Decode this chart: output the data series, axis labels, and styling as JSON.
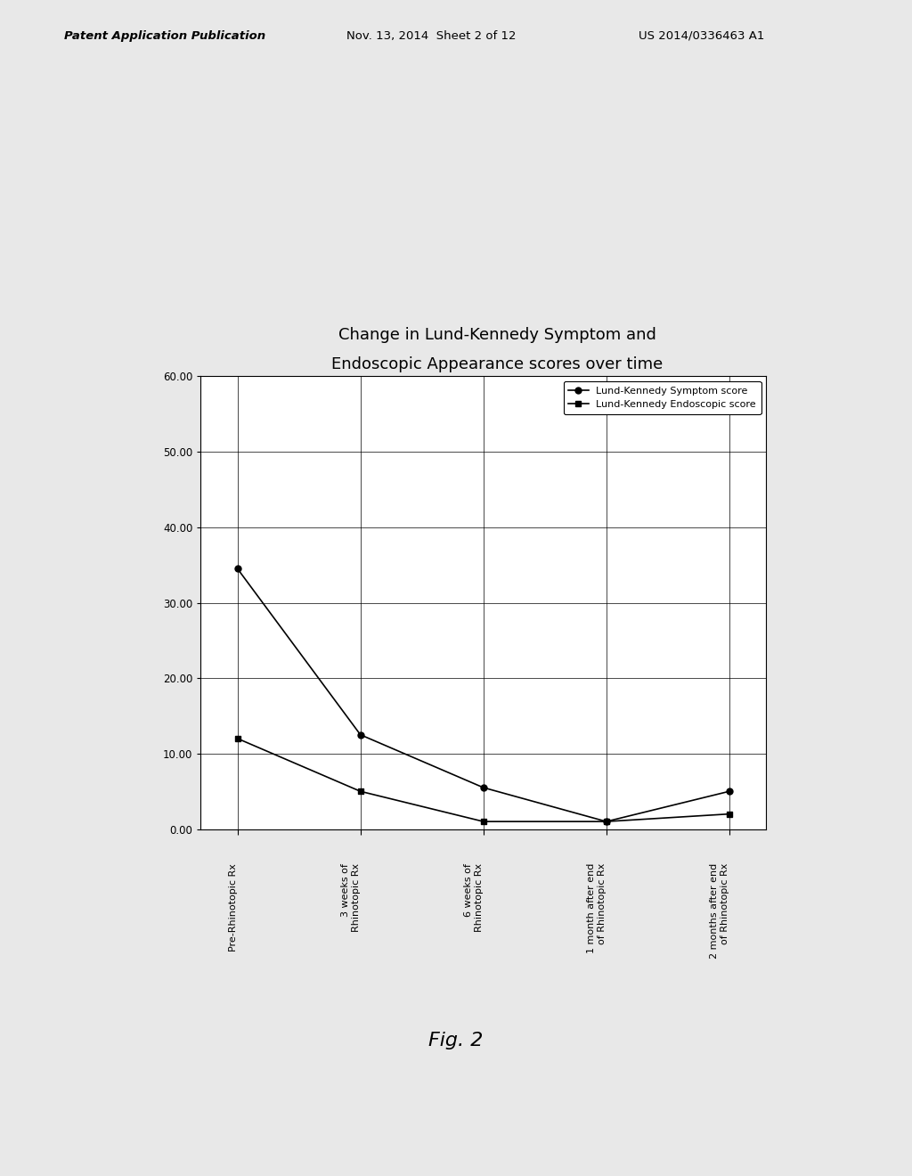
{
  "title_line1": "Change in Lund-Kennedy Symptom and",
  "title_line2": "Endoscopic Appearance scores over time",
  "header_left": "Patent Application Publication",
  "header_center": "Nov. 13, 2014  Sheet 2 of 12",
  "header_right": "US 2014/0336463 A1",
  "fig_label": "Fig. 2",
  "x_labels": [
    "Pre-Rhinotopic Rx",
    "3 weeks of\nRhinotopic Rx",
    "6 weeks of\nRhinotopic Rx",
    "1 month after end\nof Rhinotopic Rx",
    "2 months after end\nof Rhinotopic Rx"
  ],
  "series": [
    {
      "label": "Lund-Kennedy Symptom score",
      "values": [
        34.5,
        12.5,
        5.5,
        1.0,
        5.0
      ],
      "color": "#000000",
      "marker": "o",
      "linestyle": "-"
    },
    {
      "label": "Lund-Kennedy Endoscopic score",
      "values": [
        12.0,
        5.0,
        1.0,
        1.0,
        2.0
      ],
      "color": "#000000",
      "marker": "s",
      "linestyle": "-"
    }
  ],
  "ylim": [
    0,
    60
  ],
  "yticks": [
    0.0,
    10.0,
    20.0,
    30.0,
    40.0,
    50.0,
    60.0
  ],
  "background_color": "#e8e8e8",
  "grid_color": "#000000",
  "plot_bg": "#ffffff"
}
